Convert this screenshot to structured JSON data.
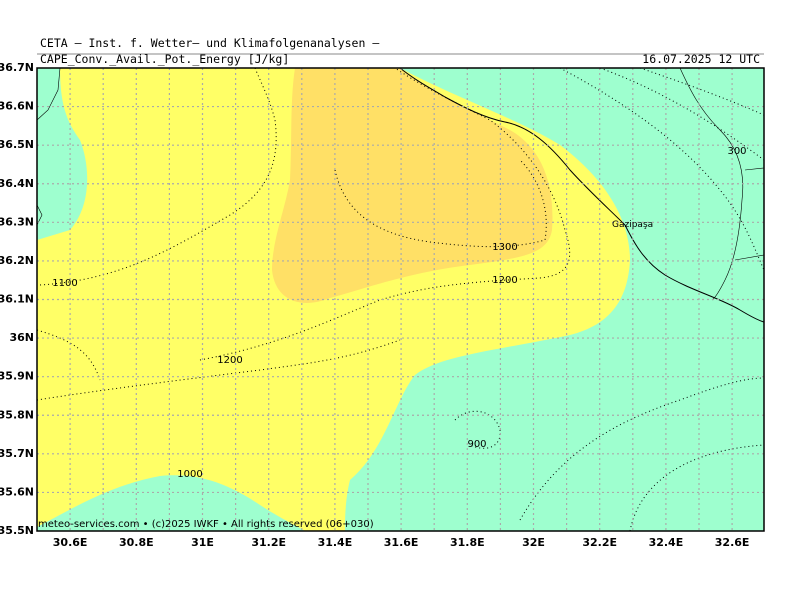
{
  "header": {
    "title": "CETA — Inst. f. Wetter— und Klimafolgenanalysen —",
    "field": "CAPE_Conv._Avail._Pot._Energy [J/kg]",
    "valid_time": "16.07.2025 12 UTC"
  },
  "axes": {
    "lat_labels": [
      "36.7N",
      "36.6N",
      "36.5N",
      "36.4N",
      "36.3N",
      "36.2N",
      "36.1N",
      "36N",
      "35.9N",
      "35.8N",
      "35.7N",
      "35.6N",
      "35.5N"
    ],
    "lon_labels": [
      "30.6E",
      "30.8E",
      "31E",
      "31.2E",
      "31.4E",
      "31.6E",
      "31.8E",
      "32E",
      "32.2E",
      "32.4E",
      "32.6E"
    ]
  },
  "contour_labels": [
    "1100",
    "1200",
    "1300",
    "1200",
    "900",
    "1000",
    "300"
  ],
  "places": [
    "Gazipaşa"
  ],
  "footer": "meteo-services.com • (c)2025 IWKF • All rights reserved (06+030)"
}
